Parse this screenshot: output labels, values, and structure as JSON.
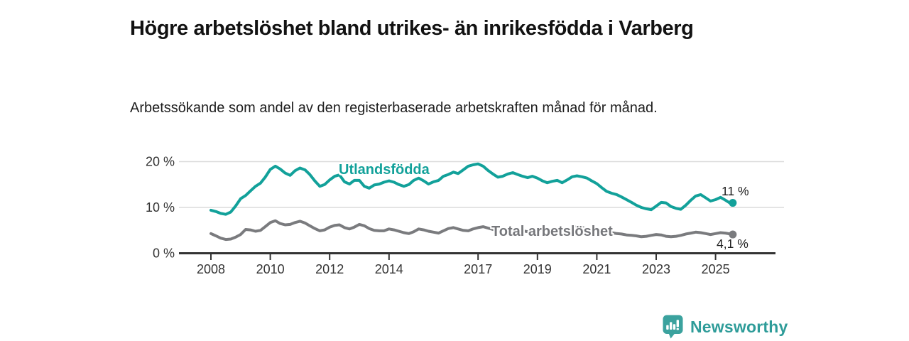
{
  "header": {
    "title": "Högre arbetslöshet bland utrikes- än inrikesfödda i Varberg",
    "subtitle": "Arbetssökande som andel av den registerbaserade arbetskraften månad för månad."
  },
  "chart_data": {
    "type": "line",
    "title": "Högre arbetslöshet bland utrikes- än inrikesfödda i Varberg",
    "subtitle": "Arbetssökande som andel av den registerbaserade arbetskraften månad för månad.",
    "xlabel": "",
    "ylabel": "",
    "ylim": [
      0,
      20
    ],
    "x_range": [
      2008.0,
      2025.58
    ],
    "grid": "horizontal",
    "legend_position": "inline-labels",
    "y_ticks": [
      {
        "value": 0,
        "label": "0 %"
      },
      {
        "value": 10,
        "label": "10 %"
      },
      {
        "value": 20,
        "label": "20 %"
      }
    ],
    "x_ticks": [
      {
        "value": 2008,
        "label": "2008"
      },
      {
        "value": 2010,
        "label": "2010"
      },
      {
        "value": 2012,
        "label": "2012"
      },
      {
        "value": 2014,
        "label": "2014"
      },
      {
        "value": 2017,
        "label": "2017"
      },
      {
        "value": 2019,
        "label": "2019"
      },
      {
        "value": 2021,
        "label": "2021"
      },
      {
        "value": 2023,
        "label": "2023"
      },
      {
        "value": 2025,
        "label": "2025"
      }
    ],
    "series": [
      {
        "name": "Utlandsfödda",
        "color": "#12A19A",
        "end_label": "11 %",
        "last_value": 11.0,
        "points": [
          [
            2008.0,
            9.4
          ],
          [
            2008.17,
            9.1
          ],
          [
            2008.33,
            8.7
          ],
          [
            2008.5,
            8.5
          ],
          [
            2008.67,
            9.0
          ],
          [
            2008.83,
            10.3
          ],
          [
            2009.0,
            11.9
          ],
          [
            2009.17,
            12.6
          ],
          [
            2009.33,
            13.6
          ],
          [
            2009.5,
            14.6
          ],
          [
            2009.67,
            15.3
          ],
          [
            2009.83,
            16.6
          ],
          [
            2010.0,
            18.3
          ],
          [
            2010.17,
            19.0
          ],
          [
            2010.33,
            18.4
          ],
          [
            2010.5,
            17.5
          ],
          [
            2010.67,
            17.0
          ],
          [
            2010.83,
            18.0
          ],
          [
            2011.0,
            18.6
          ],
          [
            2011.17,
            18.2
          ],
          [
            2011.33,
            17.2
          ],
          [
            2011.5,
            15.8
          ],
          [
            2011.67,
            14.6
          ],
          [
            2011.83,
            15.0
          ],
          [
            2012.0,
            16.0
          ],
          [
            2012.17,
            16.8
          ],
          [
            2012.33,
            17.1
          ],
          [
            2012.5,
            15.6
          ],
          [
            2012.67,
            15.1
          ],
          [
            2012.83,
            15.9
          ],
          [
            2013.0,
            15.9
          ],
          [
            2013.17,
            14.6
          ],
          [
            2013.33,
            14.2
          ],
          [
            2013.5,
            14.9
          ],
          [
            2013.67,
            15.1
          ],
          [
            2013.83,
            15.5
          ],
          [
            2014.0,
            15.8
          ],
          [
            2014.17,
            15.5
          ],
          [
            2014.33,
            15.0
          ],
          [
            2014.5,
            14.6
          ],
          [
            2014.67,
            15.0
          ],
          [
            2014.83,
            15.9
          ],
          [
            2015.0,
            16.4
          ],
          [
            2015.17,
            15.8
          ],
          [
            2015.33,
            15.1
          ],
          [
            2015.5,
            15.6
          ],
          [
            2015.67,
            15.9
          ],
          [
            2015.83,
            16.8
          ],
          [
            2016.0,
            17.2
          ],
          [
            2016.17,
            17.7
          ],
          [
            2016.33,
            17.4
          ],
          [
            2016.5,
            18.2
          ],
          [
            2016.67,
            19.0
          ],
          [
            2016.83,
            19.3
          ],
          [
            2017.0,
            19.5
          ],
          [
            2017.17,
            19.0
          ],
          [
            2017.33,
            18.1
          ],
          [
            2017.5,
            17.3
          ],
          [
            2017.67,
            16.6
          ],
          [
            2017.83,
            16.8
          ],
          [
            2018.0,
            17.3
          ],
          [
            2018.17,
            17.6
          ],
          [
            2018.33,
            17.2
          ],
          [
            2018.5,
            16.8
          ],
          [
            2018.67,
            16.5
          ],
          [
            2018.83,
            16.8
          ],
          [
            2019.0,
            16.4
          ],
          [
            2019.17,
            15.8
          ],
          [
            2019.33,
            15.4
          ],
          [
            2019.5,
            15.7
          ],
          [
            2019.67,
            15.9
          ],
          [
            2019.83,
            15.4
          ],
          [
            2020.0,
            16.0
          ],
          [
            2020.17,
            16.7
          ],
          [
            2020.33,
            16.9
          ],
          [
            2020.5,
            16.7
          ],
          [
            2020.67,
            16.4
          ],
          [
            2020.83,
            15.8
          ],
          [
            2021.0,
            15.2
          ],
          [
            2021.17,
            14.3
          ],
          [
            2021.33,
            13.5
          ],
          [
            2021.5,
            13.1
          ],
          [
            2021.67,
            12.8
          ],
          [
            2021.83,
            12.3
          ],
          [
            2022.0,
            11.7
          ],
          [
            2022.17,
            11.1
          ],
          [
            2022.33,
            10.5
          ],
          [
            2022.5,
            10.0
          ],
          [
            2022.67,
            9.7
          ],
          [
            2022.83,
            9.5
          ],
          [
            2023.0,
            10.3
          ],
          [
            2023.17,
            11.1
          ],
          [
            2023.33,
            11.0
          ],
          [
            2023.5,
            10.2
          ],
          [
            2023.67,
            9.8
          ],
          [
            2023.83,
            9.6
          ],
          [
            2024.0,
            10.5
          ],
          [
            2024.17,
            11.6
          ],
          [
            2024.33,
            12.5
          ],
          [
            2024.5,
            12.8
          ],
          [
            2024.67,
            12.1
          ],
          [
            2024.83,
            11.4
          ],
          [
            2025.0,
            11.7
          ],
          [
            2025.17,
            12.2
          ],
          [
            2025.33,
            11.6
          ],
          [
            2025.5,
            10.9
          ],
          [
            2025.58,
            11.0
          ]
        ]
      },
      {
        "name": "Total arbetslöshet",
        "color": "#7A7B7E",
        "end_label": "4,1 %",
        "last_value": 4.1,
        "points": [
          [
            2008.0,
            4.3
          ],
          [
            2008.17,
            3.8
          ],
          [
            2008.33,
            3.3
          ],
          [
            2008.5,
            3.0
          ],
          [
            2008.67,
            3.1
          ],
          [
            2008.83,
            3.5
          ],
          [
            2009.0,
            4.1
          ],
          [
            2009.17,
            5.2
          ],
          [
            2009.33,
            5.1
          ],
          [
            2009.5,
            4.8
          ],
          [
            2009.67,
            5.0
          ],
          [
            2009.83,
            5.8
          ],
          [
            2010.0,
            6.7
          ],
          [
            2010.17,
            7.1
          ],
          [
            2010.33,
            6.5
          ],
          [
            2010.5,
            6.2
          ],
          [
            2010.67,
            6.3
          ],
          [
            2010.83,
            6.7
          ],
          [
            2011.0,
            7.0
          ],
          [
            2011.17,
            6.6
          ],
          [
            2011.33,
            6.0
          ],
          [
            2011.5,
            5.4
          ],
          [
            2011.67,
            4.9
          ],
          [
            2011.83,
            5.1
          ],
          [
            2012.0,
            5.7
          ],
          [
            2012.17,
            6.1
          ],
          [
            2012.33,
            6.2
          ],
          [
            2012.5,
            5.6
          ],
          [
            2012.67,
            5.3
          ],
          [
            2012.83,
            5.7
          ],
          [
            2013.0,
            6.3
          ],
          [
            2013.17,
            6.0
          ],
          [
            2013.33,
            5.4
          ],
          [
            2013.5,
            5.0
          ],
          [
            2013.67,
            4.9
          ],
          [
            2013.83,
            4.9
          ],
          [
            2014.0,
            5.3
          ],
          [
            2014.17,
            5.1
          ],
          [
            2014.33,
            4.8
          ],
          [
            2014.5,
            4.5
          ],
          [
            2014.67,
            4.3
          ],
          [
            2014.83,
            4.7
          ],
          [
            2015.0,
            5.3
          ],
          [
            2015.17,
            5.1
          ],
          [
            2015.33,
            4.8
          ],
          [
            2015.5,
            4.6
          ],
          [
            2015.67,
            4.4
          ],
          [
            2015.83,
            4.9
          ],
          [
            2016.0,
            5.4
          ],
          [
            2016.17,
            5.6
          ],
          [
            2016.33,
            5.3
          ],
          [
            2016.5,
            5.0
          ],
          [
            2016.67,
            4.9
          ],
          [
            2016.83,
            5.3
          ],
          [
            2017.0,
            5.6
          ],
          [
            2017.17,
            5.8
          ],
          [
            2017.33,
            5.5
          ],
          [
            2017.5,
            5.2
          ],
          [
            2017.67,
            5.0
          ],
          [
            2017.83,
            5.2
          ],
          [
            2018.0,
            5.5
          ],
          [
            2018.17,
            5.3
          ],
          [
            2018.33,
            5.1
          ],
          [
            2018.5,
            4.9
          ],
          [
            2018.67,
            4.7
          ],
          [
            2018.83,
            4.9
          ],
          [
            2019.0,
            5.1
          ],
          [
            2019.17,
            4.9
          ],
          [
            2019.33,
            4.7
          ],
          [
            2019.5,
            4.6
          ],
          [
            2019.67,
            4.5
          ],
          [
            2019.83,
            4.8
          ],
          [
            2020.0,
            5.2
          ],
          [
            2020.17,
            5.6
          ],
          [
            2020.33,
            5.8
          ],
          [
            2020.5,
            5.6
          ],
          [
            2020.67,
            5.4
          ],
          [
            2020.83,
            5.3
          ],
          [
            2021.0,
            5.2
          ],
          [
            2021.17,
            5.0
          ],
          [
            2021.33,
            4.7
          ],
          [
            2021.5,
            4.5
          ],
          [
            2021.67,
            4.3
          ],
          [
            2021.83,
            4.2
          ],
          [
            2022.0,
            4.0
          ],
          [
            2022.17,
            3.9
          ],
          [
            2022.33,
            3.8
          ],
          [
            2022.5,
            3.6
          ],
          [
            2022.67,
            3.7
          ],
          [
            2022.83,
            3.9
          ],
          [
            2023.0,
            4.1
          ],
          [
            2023.17,
            4.0
          ],
          [
            2023.33,
            3.7
          ],
          [
            2023.5,
            3.6
          ],
          [
            2023.67,
            3.7
          ],
          [
            2023.83,
            3.9
          ],
          [
            2024.0,
            4.2
          ],
          [
            2024.17,
            4.4
          ],
          [
            2024.33,
            4.6
          ],
          [
            2024.5,
            4.5
          ],
          [
            2024.67,
            4.3
          ],
          [
            2024.83,
            4.1
          ],
          [
            2025.0,
            4.3
          ],
          [
            2025.17,
            4.5
          ],
          [
            2025.33,
            4.4
          ],
          [
            2025.5,
            4.2
          ],
          [
            2025.58,
            4.1
          ]
        ]
      }
    ]
  },
  "footer": {
    "brand": "Newsworthy",
    "brand_color": "#2E9C99",
    "logo_icon": "bar-chart-speech-bubble-icon"
  },
  "colors": {
    "accent_teal": "#12A19A",
    "series_gray": "#7A7B7E",
    "axis": "#333333",
    "gridline": "#dcdcdc"
  }
}
